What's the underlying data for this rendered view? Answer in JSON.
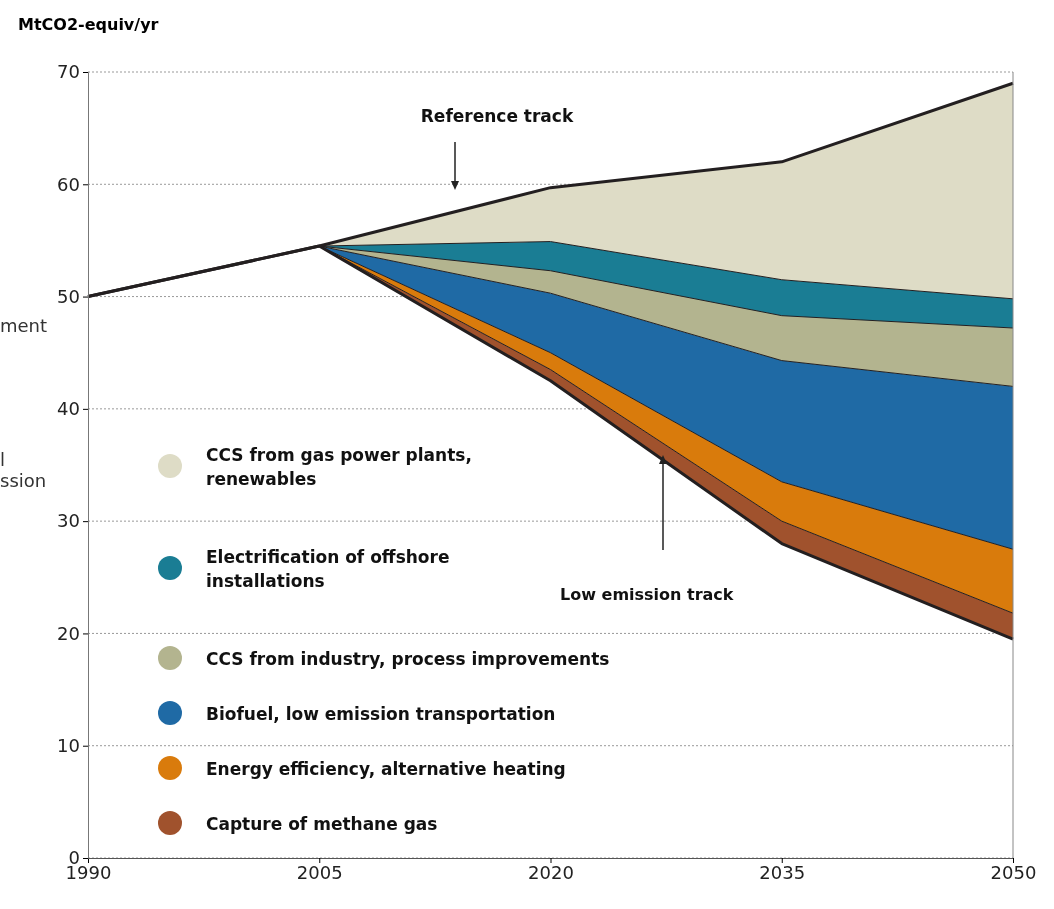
{
  "chart_data": {
    "type": "area",
    "stacked": true,
    "ylabel": "MtCO2-equiv/yr",
    "x": [
      1990,
      2005,
      2020,
      2035,
      2050
    ],
    "xlim": [
      1990,
      2050
    ],
    "xticks": [
      1990,
      2005,
      2020,
      2035,
      2050
    ],
    "ylim": [
      0,
      70
    ],
    "yticks": [
      0,
      10,
      20,
      30,
      40,
      50,
      60,
      70
    ],
    "grid": "y",
    "legend": "left",
    "series": [
      {
        "color": "#ffffff",
        "values": [
          50,
          54.5,
          42.5,
          28,
          19.5
        ]
      },
      {
        "name": "Capture of methane gas",
        "color": "#a0522d",
        "values": [
          0,
          0,
          1.0,
          2.0,
          2.3
        ]
      },
      {
        "name": "Energy efficiency, alternative heating",
        "color": "#d97b0c",
        "values": [
          0,
          0,
          1.5,
          3.5,
          5.7
        ]
      },
      {
        "name": "Biofuel, low emission transportation",
        "color": "#1f6aa5",
        "values": [
          0,
          0,
          5.3,
          10.8,
          14.5
        ]
      },
      {
        "name": "CCS from industry, process improvements",
        "color": "#b3b48f",
        "values": [
          0,
          0,
          2.0,
          4.0,
          5.2
        ]
      },
      {
        "name": "Electrification of offshore installations",
        "color": "#1a7d94",
        "values": [
          0,
          0,
          2.6,
          3.2,
          2.6
        ]
      },
      {
        "name": "CCS from gas power plants, renewables",
        "color": "#dedcc6",
        "values": [
          0,
          0,
          4.8,
          10.5,
          19.2
        ]
      }
    ],
    "annotations": [
      "Reference track",
      "Low emission track",
      "ment",
      "l",
      "ssion"
    ]
  }
}
